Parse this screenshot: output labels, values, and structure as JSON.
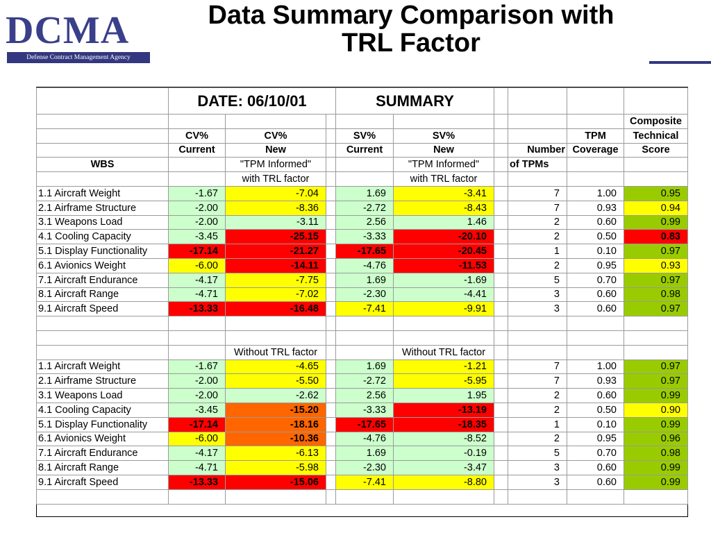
{
  "logo": {
    "text": "DCMA",
    "tagline": "Defense Contract Management Agency"
  },
  "title": {
    "line1": "Data Summary Comparison with",
    "line2": "TRL Factor"
  },
  "table": {
    "date_label": "DATE:  06/10/01",
    "summary_label": "SUMMARY",
    "headers": {
      "composite": "Composite",
      "cv": "CV%",
      "cv_new": "CV%",
      "sv": "SV%",
      "sv_new": "SV%",
      "tpm": "TPM",
      "technical": "Technical",
      "current": "Current",
      "new": "New",
      "sv_current": "Current",
      "sv_new_label": "New",
      "number": "Number",
      "coverage": "Coverage",
      "score": "Score",
      "wbs": "WBS",
      "tpm_informed": "\"TPM Informed\"",
      "sv_tpm_informed": "\"TPM Informed\"",
      "of_tpms": "of TPMs",
      "with_trl": "with TRL factor",
      "sv_with_trl": "with TRL factor",
      "without_trl": "Without TRL factor",
      "sv_without_trl": "Without TRL factor"
    },
    "section1": [
      {
        "wbs": "1.1 Aircraft Weight",
        "cv": "-1.67",
        "cvn": "-7.04",
        "sv": "1.69",
        "svn": "-3.41",
        "n": "7",
        "cov": "1.00",
        "score": "0.95"
      },
      {
        "wbs": "2.1 Airframe Structure",
        "cv": "-2.00",
        "cvn": "-8.36",
        "sv": "-2.72",
        "svn": "-8.43",
        "n": "7",
        "cov": "0.93",
        "score": "0.94"
      },
      {
        "wbs": "3.1 Weapons Load",
        "cv": "-2.00",
        "cvn": "-3.11",
        "sv": "2.56",
        "svn": "1.46",
        "n": "2",
        "cov": "0.60",
        "score": "0.99"
      },
      {
        "wbs": "4.1 Cooling Capacity",
        "cv": "-3.45",
        "cvn": "-25.15",
        "sv": "-3.33",
        "svn": "-20.10",
        "n": "2",
        "cov": "0.50",
        "score": "0.83"
      },
      {
        "wbs": "5.1 Display Functionality",
        "cv": "-17.14",
        "cvn": "-21.27",
        "sv": "-17.65",
        "svn": "-20.45",
        "n": "1",
        "cov": "0.10",
        "score": "0.97"
      },
      {
        "wbs": "6.1 Avionics Weight",
        "cv": "-6.00",
        "cvn": "-14.11",
        "sv": "-4.76",
        "svn": "-11.53",
        "n": "2",
        "cov": "0.95",
        "score": "0.93"
      },
      {
        "wbs": "7.1 Aircraft Endurance",
        "cv": "-4.17",
        "cvn": "-7.75",
        "sv": "1.69",
        "svn": "-1.69",
        "n": "5",
        "cov": "0.70",
        "score": "0.97"
      },
      {
        "wbs": "8.1 Aircraft Range",
        "cv": "-4.71",
        "cvn": "-7.02",
        "sv": "-2.30",
        "svn": "-4.41",
        "n": "3",
        "cov": "0.60",
        "score": "0.98"
      },
      {
        "wbs": "9.1 Aircraft Speed",
        "cv": "-13.33",
        "cvn": "-16.48",
        "sv": "-7.41",
        "svn": "-9.91",
        "n": "3",
        "cov": "0.60",
        "score": "0.97"
      }
    ],
    "section2": [
      {
        "wbs": "1.1 Aircraft Weight",
        "cv": "-1.67",
        "cvn": "-4.65",
        "sv": "1.69",
        "svn": "-1.21",
        "n": "7",
        "cov": "1.00",
        "score": "0.97"
      },
      {
        "wbs": "2.1 Airframe Structure",
        "cv": "-2.00",
        "cvn": "-5.50",
        "sv": "-2.72",
        "svn": "-5.95",
        "n": "7",
        "cov": "0.93",
        "score": "0.97"
      },
      {
        "wbs": "3.1 Weapons Load",
        "cv": "-2.00",
        "cvn": "-2.62",
        "sv": "2.56",
        "svn": "1.95",
        "n": "2",
        "cov": "0.60",
        "score": "0.99"
      },
      {
        "wbs": "4.1 Cooling Capacity",
        "cv": "-3.45",
        "cvn": "-15.20",
        "sv": "-3.33",
        "svn": "-13.19",
        "n": "2",
        "cov": "0.50",
        "score": "0.90"
      },
      {
        "wbs": "5.1 Display Functionality",
        "cv": "-17.14",
        "cvn": "-18.16",
        "sv": "-17.65",
        "svn": "-18.35",
        "n": "1",
        "cov": "0.10",
        "score": "0.99"
      },
      {
        "wbs": "6.1 Avionics Weight",
        "cv": "-6.00",
        "cvn": "-10.36",
        "sv": "-4.76",
        "svn": "-8.52",
        "n": "2",
        "cov": "0.95",
        "score": "0.96"
      },
      {
        "wbs": "7.1 Aircraft Endurance",
        "cv": "-4.17",
        "cvn": "-6.13",
        "sv": "1.69",
        "svn": "-0.19",
        "n": "5",
        "cov": "0.70",
        "score": "0.98"
      },
      {
        "wbs": "8.1 Aircraft Range",
        "cv": "-4.71",
        "cvn": "-5.98",
        "sv": "-2.30",
        "svn": "-3.47",
        "n": "3",
        "cov": "0.60",
        "score": "0.99"
      },
      {
        "wbs": "9.1 Aircraft Speed",
        "cv": "-13.33",
        "cvn": "-15.06",
        "sv": "-7.41",
        "svn": "-8.80",
        "n": "3",
        "cov": "0.60",
        "score": "0.99"
      }
    ]
  }
}
